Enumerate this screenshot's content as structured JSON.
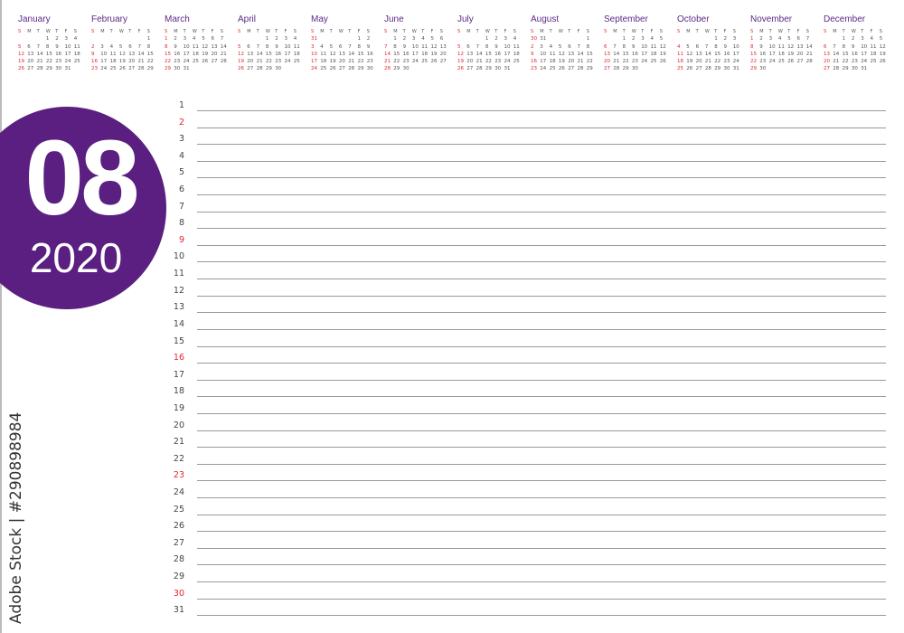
{
  "accent_color": "#5a1f80",
  "sunday_color": "#e3262f",
  "weekday_headers": [
    "S",
    "M",
    "T",
    "W",
    "T",
    "F",
    "S"
  ],
  "months": [
    {
      "name": "January",
      "start_weekday": 3,
      "days": 31
    },
    {
      "name": "February",
      "start_weekday": 6,
      "days": 29
    },
    {
      "name": "March",
      "start_weekday": 0,
      "days": 31
    },
    {
      "name": "April",
      "start_weekday": 3,
      "days": 30
    },
    {
      "name": "May",
      "start_weekday": 5,
      "days": 31
    },
    {
      "name": "June",
      "start_weekday": 1,
      "days": 30
    },
    {
      "name": "July",
      "start_weekday": 3,
      "days": 31
    },
    {
      "name": "August",
      "start_weekday": 6,
      "days": 31
    },
    {
      "name": "September",
      "start_weekday": 2,
      "days": 30
    },
    {
      "name": "October",
      "start_weekday": 4,
      "days": 31
    },
    {
      "name": "November",
      "start_weekday": 0,
      "days": 30
    },
    {
      "name": "December",
      "start_weekday": 2,
      "days": 31
    }
  ],
  "badge": {
    "month": "08",
    "year": "2020"
  },
  "planner": {
    "days": 31,
    "sundays": [
      2,
      9,
      16,
      23,
      30
    ]
  },
  "side_text": "Adobe Stock | #290898984"
}
